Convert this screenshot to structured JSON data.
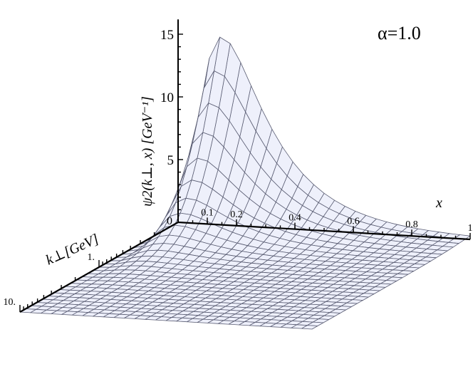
{
  "chart_data": {
    "type": "surface",
    "title": "",
    "annotation": "α=1.0",
    "zlabel": "ψ2(k⊥, x) [GeV⁻¹]",
    "xlabel": "x",
    "ylabel": "k⊥[GeV]",
    "x_range": [
      0,
      1
    ],
    "k_range_log10": [
      -1,
      1
    ],
    "z_range": [
      0,
      15.5
    ],
    "z_ticks": [
      "5",
      "10",
      "15"
    ],
    "x_ticks": [
      "0.1",
      "0.2",
      "0.4",
      "0.6",
      "0.8",
      "1"
    ],
    "x_tick_values": [
      0.1,
      0.2,
      0.4,
      0.6,
      0.8,
      1.0
    ],
    "k_ticks": [
      "1.",
      "10."
    ],
    "k_tick_values_log10": [
      0,
      1
    ],
    "z_axis_origin_label": "0",
    "surface_peak": {
      "x": 0.15,
      "k": 0.1,
      "z": 15.0
    },
    "mesh": {
      "x_lines": 28,
      "k_lines": 28
    },
    "colors": {
      "surface_fill": "#eef0fb",
      "mesh_line": "#5a5d73",
      "axis": "#000000"
    }
  }
}
